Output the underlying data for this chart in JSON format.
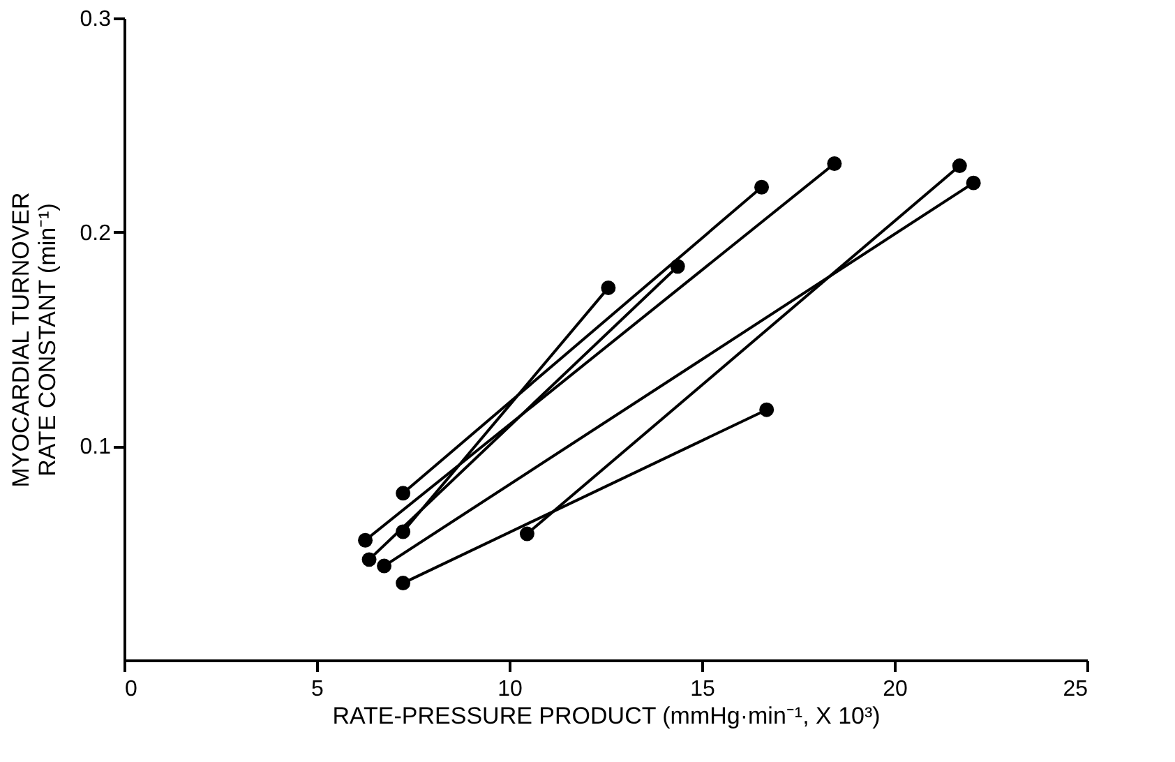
{
  "chart_data": {
    "type": "line",
    "xlabel": "RATE-PRESSURE PRODUCT (mmHg·min⁻¹, X 10³)",
    "ylabel": "MYOCARDIAL TURNOVER\nRATE CONSTANT (min⁻¹)",
    "xlim": [
      0,
      25
    ],
    "xticks": [
      0,
      5,
      10,
      15,
      20,
      25
    ],
    "ylim": [
      0,
      0.3
    ],
    "yticks": [
      0.1,
      0.2,
      0.3
    ],
    "grid": false,
    "legend": false,
    "marker": "circle",
    "line_style": "solid",
    "series": [
      {
        "color": "#000000",
        "x": [
          7.24,
          16.68
        ],
        "values": [
          0.036,
          0.117
        ]
      },
      {
        "color": "#000000",
        "x": [
          10.46,
          21.69
        ],
        "values": [
          0.059,
          0.231
        ]
      },
      {
        "color": "#000000",
        "x": [
          6.75,
          22.05
        ],
        "values": [
          0.044,
          0.223
        ]
      },
      {
        "color": "#000000",
        "x": [
          7.24,
          12.57
        ],
        "values": [
          0.06,
          0.174
        ]
      },
      {
        "color": "#000000",
        "x": [
          6.26,
          18.44
        ],
        "values": [
          0.056,
          0.232
        ]
      },
      {
        "color": "#000000",
        "x": [
          7.24,
          16.55
        ],
        "values": [
          0.078,
          0.221
        ]
      },
      {
        "color": "#000000",
        "x": [
          6.36,
          14.37
        ],
        "values": [
          0.047,
          0.184
        ]
      }
    ]
  }
}
